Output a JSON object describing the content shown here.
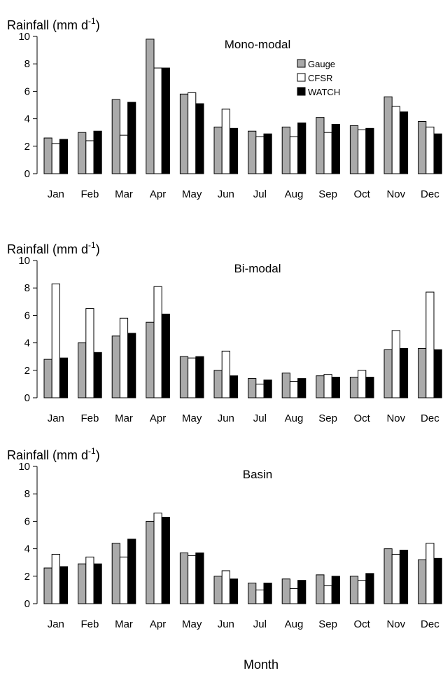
{
  "figure": {
    "xlabel": "Month",
    "colors": {
      "Gauge": "#aaaaaa",
      "CFSR": "#ffffff",
      "WATCH": "#000000"
    }
  },
  "chart_data": [
    {
      "type": "bar",
      "title": "Mono-modal",
      "ylabel": "Rainfall (mm d",
      "ylabel_sup": "-1",
      "ylabel_close": ")",
      "ylim": [
        0,
        10
      ],
      "yticks": [
        0,
        2,
        4,
        6,
        8,
        10
      ],
      "legend": "top-right",
      "categories": [
        "Jan",
        "Feb",
        "Mar",
        "Apr",
        "May",
        "Jun",
        "Jul",
        "Aug",
        "Sep",
        "Oct",
        "Nov",
        "Dec"
      ],
      "series": [
        {
          "name": "Gauge",
          "values": [
            2.6,
            3.0,
            5.4,
            9.8,
            5.8,
            3.4,
            3.1,
            3.4,
            4.1,
            3.5,
            5.6,
            3.8
          ]
        },
        {
          "name": "CFSR",
          "values": [
            2.2,
            2.4,
            2.8,
            7.7,
            5.9,
            4.7,
            2.7,
            2.7,
            3.0,
            3.2,
            4.9,
            3.4
          ]
        },
        {
          "name": "WATCH",
          "values": [
            2.5,
            3.1,
            5.2,
            7.7,
            5.1,
            3.3,
            2.9,
            3.7,
            3.6,
            3.3,
            4.5,
            2.9
          ]
        }
      ]
    },
    {
      "type": "bar",
      "title": "Bi-modal",
      "ylabel": "Rainfall (mm d",
      "ylabel_sup": "-1",
      "ylabel_close": ")",
      "ylim": [
        0,
        10
      ],
      "yticks": [
        0,
        2,
        4,
        6,
        8,
        10
      ],
      "categories": [
        "Jan",
        "Feb",
        "Mar",
        "Apr",
        "May",
        "Jun",
        "Jul",
        "Aug",
        "Sep",
        "Oct",
        "Nov",
        "Dec"
      ],
      "series": [
        {
          "name": "Gauge",
          "values": [
            2.8,
            4.0,
            4.5,
            5.5,
            3.0,
            2.0,
            1.4,
            1.8,
            1.6,
            1.5,
            3.5,
            3.6
          ]
        },
        {
          "name": "CFSR",
          "values": [
            8.3,
            6.5,
            5.8,
            8.1,
            2.9,
            3.4,
            1.0,
            1.2,
            1.7,
            2.0,
            4.9,
            7.7
          ]
        },
        {
          "name": "WATCH",
          "values": [
            2.9,
            3.3,
            4.7,
            6.1,
            3.0,
            1.6,
            1.3,
            1.4,
            1.5,
            1.5,
            3.6,
            3.5
          ]
        }
      ]
    },
    {
      "type": "bar",
      "title": "Basin",
      "ylabel": "Rainfall (mm d",
      "ylabel_sup": "-1",
      "ylabel_close": ")",
      "ylim": [
        0,
        10
      ],
      "yticks": [
        0,
        2,
        4,
        6,
        8,
        10
      ],
      "categories": [
        "Jan",
        "Feb",
        "Mar",
        "Apr",
        "May",
        "Jun",
        "Jul",
        "Aug",
        "Sep",
        "Oct",
        "Nov",
        "Dec"
      ],
      "series": [
        {
          "name": "Gauge",
          "values": [
            2.6,
            2.9,
            4.4,
            6.0,
            3.7,
            2.0,
            1.5,
            1.8,
            2.1,
            2.0,
            4.0,
            3.2
          ]
        },
        {
          "name": "CFSR",
          "values": [
            3.6,
            3.4,
            3.4,
            6.6,
            3.5,
            2.4,
            1.0,
            1.1,
            1.3,
            1.7,
            3.6,
            4.4
          ]
        },
        {
          "name": "WATCH",
          "values": [
            2.7,
            2.9,
            4.7,
            6.3,
            3.7,
            1.8,
            1.5,
            1.7,
            2.0,
            2.2,
            3.9,
            3.3
          ]
        }
      ]
    }
  ]
}
